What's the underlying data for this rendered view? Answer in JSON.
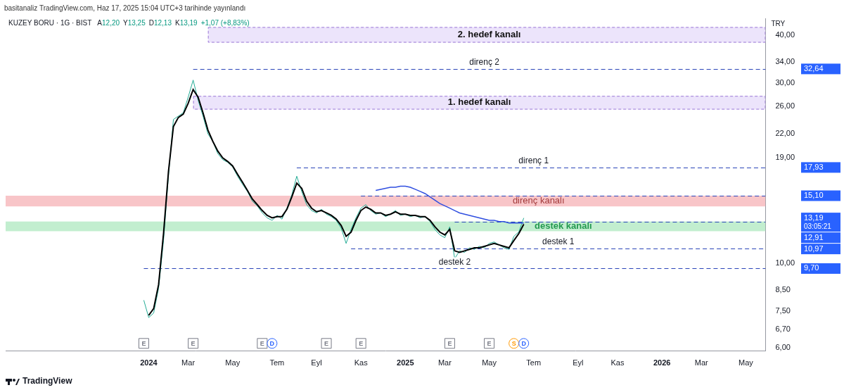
{
  "chart_data": {
    "type": "line",
    "title": "KUZEY BORU · 1G · BIST",
    "publisher": "basitanaliz TradingView.com, Haz 17, 2025 15:04 UTC+3 tarihinde yayınlandı",
    "ohlc": [
      {
        "label": "A",
        "value": "12,20"
      },
      {
        "label": "Y",
        "value": "13,25"
      },
      {
        "label": "D",
        "value": "12,13"
      },
      {
        "label": "K",
        "value": "13,19"
      }
    ],
    "change": "+1,07 (+8,83%)",
    "currency": "TRY",
    "footer": "TradingView",
    "log": "y",
    "grid": false,
    "ylim": [
      5.87,
      44.4
    ],
    "yticks": [
      {
        "value": 6,
        "label": "6,00"
      },
      {
        "value": 6.7,
        "label": "6,70"
      },
      {
        "value": 7.5,
        "label": "7,50"
      },
      {
        "value": 8.5,
        "label": "8,50"
      },
      {
        "value": 10,
        "label": "10,00"
      },
      {
        "value": 19,
        "label": "19,00"
      },
      {
        "value": 22,
        "label": "22,00"
      },
      {
        "value": 26,
        "label": "26,00"
      },
      {
        "value": 30,
        "label": "30,00"
      },
      {
        "value": 34,
        "label": "34,00"
      },
      {
        "value": 40,
        "label": "40,00"
      }
    ],
    "categories": [
      null,
      null,
      null,
      null,
      null,
      null,
      null,
      null,
      null,
      null,
      null,
      null,
      null,
      null,
      null,
      null,
      null,
      null,
      null,
      null,
      null,
      null,
      null,
      null,
      null,
      null,
      null,
      null,
      null,
      "2024",
      null,
      null,
      null,
      null,
      null,
      null,
      null,
      "Mar",
      null,
      null,
      null,
      null,
      null,
      null,
      null,
      null,
      "May",
      null,
      null,
      null,
      null,
      null,
      null,
      null,
      null,
      "Tem",
      null,
      null,
      null,
      null,
      null,
      null,
      null,
      "Eyl",
      null,
      null,
      null,
      null,
      null,
      null,
      null,
      null,
      "Kas",
      null,
      null,
      null,
      null,
      null,
      null,
      null,
      null,
      "2025",
      null,
      null,
      null,
      null,
      null,
      null,
      null,
      "Mar",
      null,
      null,
      null,
      null,
      null,
      null,
      null,
      null,
      "May",
      null,
      null,
      null,
      null,
      null,
      null,
      null,
      null,
      "Tem",
      null,
      null,
      null,
      null,
      null,
      null,
      null,
      null,
      "Eyl",
      null,
      null,
      null,
      null,
      null,
      null,
      null,
      "Kas",
      null,
      null,
      null,
      null,
      null,
      null,
      null,
      null,
      "2026",
      null,
      null,
      null,
      null,
      null,
      null,
      null,
      "Mar",
      null,
      null,
      null,
      null,
      null,
      null,
      null,
      null,
      "May",
      null,
      null,
      null,
      null
    ],
    "series": [
      {
        "color": "#000000",
        "line_style": "solid",
        "values": [
          null,
          null,
          null,
          null,
          null,
          null,
          null,
          null,
          null,
          null,
          null,
          null,
          null,
          null,
          null,
          null,
          null,
          null,
          null,
          null,
          null,
          null,
          null,
          null,
          null,
          null,
          null,
          null,
          null,
          7.3,
          7.6,
          8.8,
          12.0,
          17.5,
          23.0,
          24.3,
          24.8,
          26.5,
          28.8,
          27.5,
          25.0,
          22.5,
          21.0,
          19.8,
          19.0,
          18.6,
          18.1,
          17.2,
          16.4,
          15.6,
          14.8,
          14.3,
          13.8,
          13.4,
          13.2,
          13.3,
          13.3,
          13.9,
          15.0,
          16.3,
          15.8,
          14.6,
          14.0,
          13.7,
          13.8,
          13.6,
          13.4,
          13.1,
          12.6,
          11.8,
          12.1,
          13.0,
          13.8,
          14.1,
          13.9,
          13.6,
          13.6,
          13.4,
          13.5,
          13.7,
          13.5,
          13.5,
          13.4,
          13.4,
          13.3,
          13.3,
          13.0,
          12.5,
          12.1,
          11.9,
          12.3,
          10.8,
          10.7,
          10.8,
          10.9,
          11.0,
          11.0,
          11.1,
          11.2,
          11.3,
          11.2,
          11.1,
          11.0,
          11.5,
          12.0,
          12.7,
          null,
          null,
          null,
          null,
          null,
          null,
          null,
          null,
          null,
          null,
          null,
          null,
          null,
          null,
          null,
          null,
          null,
          null,
          null,
          null,
          null,
          null,
          null,
          null,
          null,
          null,
          null,
          null,
          null,
          null,
          null,
          null,
          null,
          null,
          null,
          null,
          null,
          null,
          null,
          null,
          null,
          null,
          null,
          null,
          null,
          null,
          null,
          null,
          null
        ]
      },
      {
        "color": "#2f4ee0",
        "line_style": "solid",
        "values": [
          null,
          null,
          null,
          null,
          null,
          null,
          null,
          null,
          null,
          null,
          null,
          null,
          null,
          null,
          null,
          null,
          null,
          null,
          null,
          null,
          null,
          null,
          null,
          null,
          null,
          null,
          null,
          null,
          null,
          null,
          null,
          null,
          null,
          null,
          null,
          null,
          null,
          null,
          null,
          null,
          null,
          null,
          null,
          null,
          null,
          null,
          null,
          null,
          null,
          null,
          null,
          null,
          null,
          null,
          null,
          null,
          null,
          null,
          null,
          null,
          null,
          null,
          null,
          null,
          null,
          null,
          null,
          null,
          null,
          null,
          null,
          null,
          null,
          null,
          null,
          15.6,
          15.7,
          15.8,
          15.9,
          15.9,
          16.0,
          16.0,
          15.9,
          15.7,
          15.5,
          15.3,
          15.0,
          14.7,
          14.4,
          14.2,
          14.0,
          13.8,
          13.6,
          13.5,
          13.4,
          13.3,
          13.2,
          13.1,
          13.0,
          13.0,
          12.9,
          12.9,
          12.8,
          12.8,
          12.8,
          12.8,
          null,
          null,
          null,
          null,
          null,
          null,
          null,
          null,
          null,
          null,
          null,
          null,
          null,
          null,
          null,
          null,
          null,
          null,
          null,
          null,
          null,
          null,
          null,
          null,
          null,
          null,
          null,
          null,
          null,
          null,
          null,
          null,
          null,
          null,
          null,
          null,
          null,
          null,
          null,
          null,
          null,
          null,
          null,
          null,
          null,
          null,
          null,
          null,
          null
        ]
      },
      {
        "color": "#22ab94",
        "line_style": "solid",
        "values": [
          null,
          null,
          null,
          null,
          null,
          null,
          null,
          null,
          null,
          null,
          null,
          null,
          null,
          null,
          null,
          null,
          null,
          null,
          null,
          null,
          null,
          null,
          null,
          null,
          null,
          null,
          null,
          null,
          8.0,
          7.2,
          7.4,
          8.6,
          11.5,
          17.0,
          24.0,
          24.5,
          25.0,
          27.5,
          30.5,
          27.0,
          24.5,
          22.0,
          21.0,
          19.5,
          18.8,
          18.5,
          18.0,
          17.0,
          16.2,
          15.5,
          14.6,
          14.2,
          13.6,
          13.2,
          13.0,
          13.4,
          13.1,
          14.0,
          15.2,
          17.0,
          15.5,
          14.3,
          13.8,
          13.6,
          13.9,
          13.5,
          13.3,
          13.0,
          12.4,
          11.3,
          12.3,
          13.2,
          14.0,
          14.3,
          13.8,
          13.5,
          13.6,
          13.3,
          13.5,
          13.8,
          13.4,
          13.5,
          13.3,
          13.4,
          13.2,
          13.3,
          12.9,
          12.3,
          11.9,
          11.7,
          12.5,
          10.3,
          10.8,
          10.7,
          11.0,
          10.9,
          11.1,
          11.0,
          11.3,
          11.4,
          11.2,
          11.0,
          10.9,
          11.8,
          12.12,
          13.19,
          null,
          null,
          null,
          null,
          null,
          null,
          null,
          null,
          null,
          null,
          null,
          null,
          null,
          null,
          null,
          null,
          null,
          null,
          null,
          null,
          null,
          null,
          null,
          null,
          null,
          null,
          null,
          null,
          null,
          null,
          null,
          null,
          null,
          null,
          null,
          null,
          null,
          null,
          null,
          null,
          null,
          null,
          null,
          null,
          null,
          null,
          null,
          null,
          null
        ]
      }
    ],
    "bands": [
      {
        "label": "2. hedef kanalı",
        "range": [
          38.3,
          42.1
        ],
        "from": 41,
        "label_x": 98,
        "color": "#ece4fb",
        "line_style": "dashed"
      },
      {
        "label": "1. hedef kanalı",
        "range": [
          25.5,
          27.7
        ],
        "from": 38,
        "label_x": 96,
        "color": "#ece4fb",
        "line_style": "dashed"
      },
      {
        "label": "direnç kanalı",
        "range": [
          14.15,
          15.1
        ],
        "from": 0,
        "label_x": 108,
        "color": "#f8c5c8",
        "line_style": "solid"
      },
      {
        "label": "destek kanalı",
        "range": [
          12.17,
          12.91
        ],
        "from": 0,
        "label_x": 113,
        "color": "#c2eecf",
        "line_style": "solid"
      }
    ],
    "lines": [
      {
        "label": "direnç 2",
        "value": 32.64,
        "value_label": "32,64",
        "from": 38,
        "label_x": 97,
        "color": "#2a44b8",
        "line_style": "dashed"
      },
      {
        "label": "direnç 1",
        "value": 17.93,
        "value_label": "17,93",
        "from": 59,
        "label_x": 107,
        "color": "#2a44b8",
        "line_style": "dashed"
      },
      {
        "value": 15.1,
        "value_label": "15,10",
        "from": 72,
        "color": "#2a44b8",
        "line_style": "dashed"
      },
      {
        "value": 12.91,
        "value_label": "12,91",
        "from": 91,
        "color": "#2a44b8",
        "line_style": "dashed"
      },
      {
        "label": "destek 1",
        "value": 10.97,
        "value_label": "10,97",
        "from": 70,
        "label_x": 112,
        "color": "#2a44b8",
        "line_style": "dashed"
      },
      {
        "label": "destek 2",
        "value": 9.7,
        "value_label": "9,70",
        "from": 28,
        "label_x": 91,
        "color": "#2a44b8",
        "line_style": "dashed"
      }
    ],
    "last_price": {
      "value": 13.19,
      "label": "13,19",
      "countdown": "03:05:21"
    },
    "events": [
      {
        "x": 28,
        "label": "E"
      },
      {
        "x": 38,
        "label": "E"
      },
      {
        "x": 52,
        "label": "E"
      },
      {
        "x": 54,
        "label": "D"
      },
      {
        "x": 65,
        "label": "E"
      },
      {
        "x": 72,
        "label": "E"
      },
      {
        "x": 90,
        "label": "E"
      },
      {
        "x": 98,
        "label": "E"
      },
      {
        "x": 103,
        "label": "S"
      },
      {
        "x": 105,
        "label": "D"
      }
    ]
  }
}
